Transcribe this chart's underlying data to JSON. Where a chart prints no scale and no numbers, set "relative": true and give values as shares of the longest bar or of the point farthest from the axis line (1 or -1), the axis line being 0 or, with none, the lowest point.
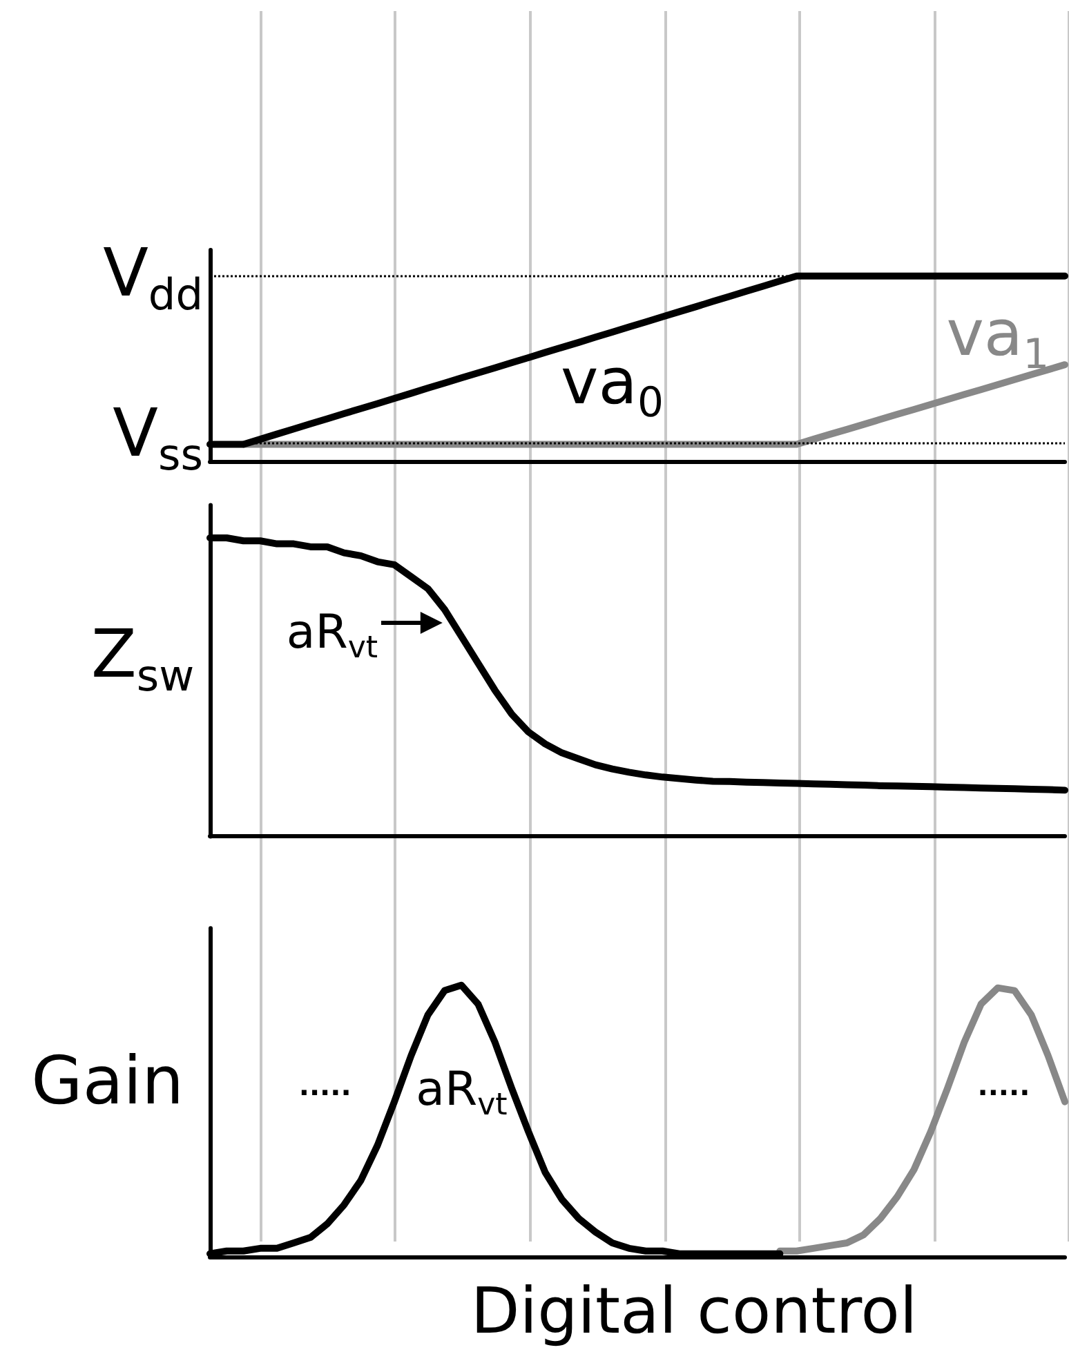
{
  "chart_data": [
    {
      "type": "line",
      "relative": true,
      "grid": "x",
      "categories": [
        null,
        null,
        null,
        null,
        null,
        null,
        null,
        null,
        null,
        null,
        null,
        null,
        null,
        null,
        null,
        null,
        null,
        null,
        null,
        null,
        null,
        null,
        null,
        null,
        null,
        null,
        null,
        null,
        null,
        null,
        null,
        null,
        null,
        null,
        null,
        null,
        null,
        null,
        null,
        null,
        null,
        null,
        null,
        null,
        null,
        null,
        null,
        null,
        null,
        null,
        null,
        null
      ],
      "series": [
        {
          "name": "va$_{0}$",
          "color": "#000000",
          "values": [
            0.095,
            0.095,
            0.095,
            0.122,
            0.15,
            0.177,
            0.205,
            0.232,
            0.26,
            0.287,
            0.314,
            0.342,
            0.369,
            0.397,
            0.424,
            0.452,
            0.479,
            0.506,
            0.534,
            0.561,
            0.589,
            0.616,
            0.643,
            0.671,
            0.698,
            0.726,
            0.753,
            0.781,
            0.808,
            0.835,
            0.863,
            0.89,
            0.918,
            0.945,
            0.973,
            1,
            1,
            1,
            1,
            1,
            1,
            1,
            1,
            1,
            1,
            1,
            1,
            1,
            1,
            1,
            1,
            1
          ]
        },
        {
          "name": "va$_{1}$",
          "color": "#888888",
          "values": [
            null,
            null,
            0.095,
            0.095,
            0.095,
            0.095,
            0.095,
            0.095,
            0.095,
            0.095,
            0.095,
            0.095,
            0.095,
            0.095,
            0.095,
            0.095,
            0.095,
            0.095,
            0.095,
            0.095,
            0.095,
            0.095,
            0.095,
            0.095,
            0.095,
            0.095,
            0.095,
            0.095,
            0.095,
            0.095,
            0.095,
            0.095,
            0.095,
            0.095,
            0.095,
            0.095,
            0.122,
            0.149,
            0.175,
            0.202,
            0.229,
            0.256,
            0.282,
            0.309,
            0.336,
            0.363,
            0.389,
            0.416,
            0.443,
            0.47,
            0.496,
            0.523
          ]
        }
      ],
      "ref_lines": [
        {
          "axis": "y",
          "value": 1,
          "label": "V$_{dd}$",
          "color": "#000000",
          "line_style": "dotted"
        },
        {
          "axis": "y",
          "value": 0.095,
          "label": "V$_{ss}$",
          "color": "#000000",
          "line_style": "dotted"
        }
      ]
    },
    {
      "type": "line",
      "relative": true,
      "grid": "x",
      "ylabel": "Z$_{sw}$",
      "categories": [
        null,
        null,
        null,
        null,
        null,
        null,
        null,
        null,
        null,
        null,
        null,
        null,
        null,
        null,
        null,
        null,
        null,
        null,
        null,
        null,
        null,
        null,
        null,
        null,
        null,
        null,
        null,
        null,
        null,
        null,
        null,
        null,
        null,
        null,
        null,
        null,
        null,
        null,
        null,
        null,
        null,
        null,
        null,
        null,
        null,
        null,
        null,
        null,
        null,
        null,
        null,
        null
      ],
      "series": [
        {
          "color": "#000000",
          "values": [
            1,
            1,
            0.99,
            0.99,
            0.98,
            0.98,
            0.97,
            0.97,
            0.95,
            0.94,
            0.92,
            0.91,
            0.87,
            0.83,
            0.76,
            0.67,
            0.58,
            0.49,
            0.41,
            0.35,
            0.31,
            0.28,
            0.26,
            0.24,
            0.226,
            0.215,
            0.206,
            0.199,
            0.194,
            0.189,
            0.185,
            0.184,
            0.182,
            0.181,
            0.179,
            0.178,
            0.176,
            0.175,
            0.173,
            0.172,
            0.17,
            0.169,
            0.168,
            0.167,
            0.165,
            0.164,
            0.162,
            0.161,
            0.16,
            0.158,
            0.157,
            0.155
          ]
        }
      ],
      "annotations": [
        "aR$_{vt}$"
      ]
    },
    {
      "type": "line",
      "relative": true,
      "grid": "x",
      "xlabel": "Digital control",
      "ylabel": "Gain",
      "categories": [
        null,
        null,
        null,
        null,
        null,
        null,
        null,
        null,
        null,
        null,
        null,
        null,
        null,
        null,
        null,
        null,
        null,
        null,
        null,
        null,
        null,
        null,
        null,
        null,
        null,
        null,
        null,
        null,
        null,
        null,
        null,
        null,
        null,
        null,
        null,
        null,
        null,
        null,
        null,
        null,
        null,
        null,
        null,
        null,
        null,
        null,
        null,
        null,
        null,
        null,
        null,
        null
      ],
      "series": [
        {
          "color": "#000000",
          "values": [
            0.01,
            0.02,
            0.02,
            0.03,
            0.03,
            0.05,
            0.07,
            0.12,
            0.19,
            0.28,
            0.41,
            0.57,
            0.74,
            0.89,
            0.98,
            1,
            0.93,
            0.79,
            0.62,
            0.46,
            0.31,
            0.21,
            0.14,
            0.09,
            0.05,
            0.03,
            0.02,
            0.02,
            0.01,
            0.01,
            0.01,
            0.01,
            0.01,
            0.01,
            0.01,
            null,
            null,
            null,
            null,
            null,
            null,
            null,
            null,
            null,
            null,
            null,
            null,
            null,
            null,
            null,
            null,
            null
          ]
        },
        {
          "color": "#888888",
          "values": [
            null,
            null,
            null,
            null,
            null,
            null,
            null,
            null,
            null,
            null,
            null,
            null,
            null,
            null,
            null,
            null,
            null,
            null,
            null,
            null,
            null,
            null,
            null,
            null,
            null,
            null,
            null,
            null,
            null,
            null,
            null,
            null,
            null,
            null,
            0.02,
            0.02,
            0.03,
            0.04,
            0.05,
            0.08,
            0.14,
            0.22,
            0.32,
            0.46,
            0.62,
            0.79,
            0.93,
            0.99,
            0.98,
            0.89,
            0.74,
            0.57
          ]
        }
      ],
      "annotations": [
        ".....",
        "aR$_{vt}$",
        "....."
      ]
    }
  ]
}
